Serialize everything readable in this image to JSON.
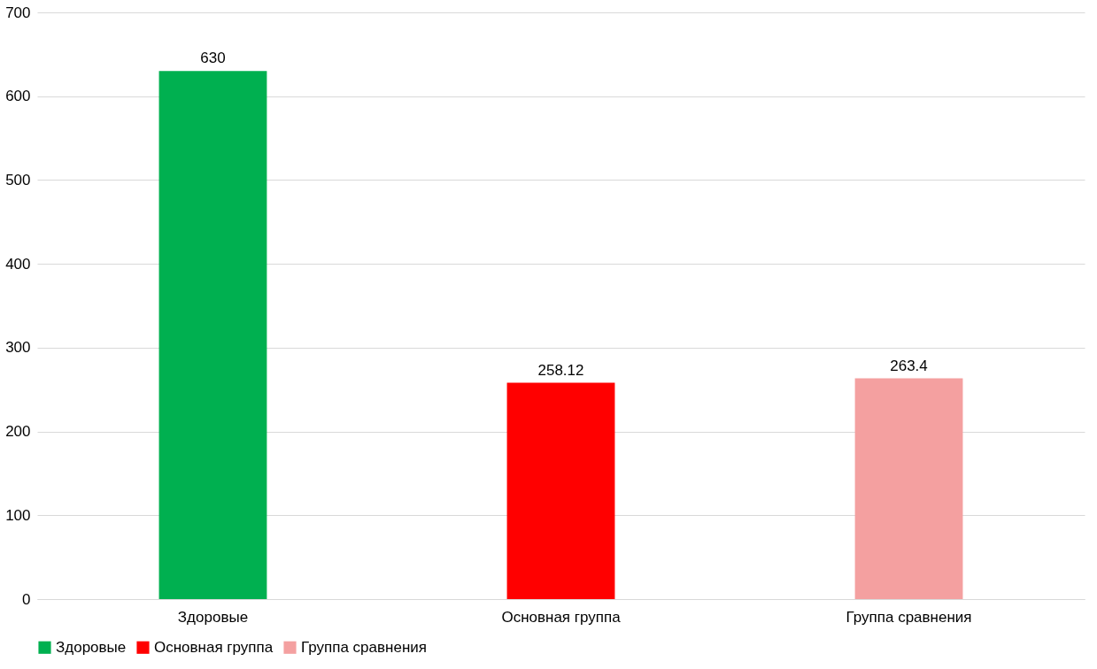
{
  "chart_data": {
    "type": "bar",
    "categories": [
      "Здоровые",
      "Основная группа",
      "Группа сравнения"
    ],
    "series": [
      {
        "name": "Здоровые",
        "color": "#00b050",
        "values": [
          630,
          null,
          null
        ]
      },
      {
        "name": "Основная группа",
        "color": "#ff0000",
        "values": [
          null,
          258.12,
          null
        ]
      },
      {
        "name": "Группа сравнения",
        "color": "#f4a0a0",
        "values": [
          null,
          null,
          263.4
        ]
      }
    ],
    "ylim": [
      0,
      700
    ],
    "yticks": [
      0,
      100,
      200,
      300,
      400,
      500,
      600,
      700
    ],
    "grid": "y",
    "legend": "bottom",
    "data_labels": true
  }
}
